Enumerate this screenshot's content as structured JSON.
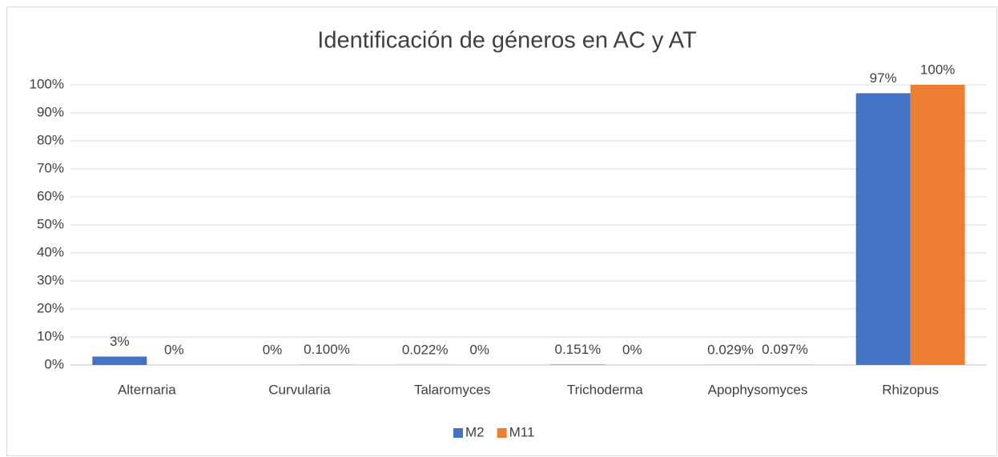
{
  "chart_data": {
    "type": "bar",
    "title": "Identificación de géneros en AC y AT",
    "categories": [
      "Alternaria",
      "Curvularia",
      "Talaromyces",
      "Trichoderma",
      "Apophysomyces",
      "Rhizopus"
    ],
    "series": [
      {
        "name": "M2",
        "color": "#4472c4",
        "values": [
          3,
          0,
          0.022,
          0.151,
          0.029,
          97
        ],
        "value_labels": [
          "3%",
          "0%",
          "0.022%",
          "0.151%",
          "0.029%",
          "97%"
        ]
      },
      {
        "name": "M11",
        "color": "#ed7d31",
        "values": [
          0,
          0.1,
          0,
          0,
          0.097,
          100
        ],
        "value_labels": [
          "0%",
          "0.100%",
          "0%",
          "0%",
          "0.097%",
          "100%"
        ]
      }
    ],
    "ylim": [
      0,
      100
    ],
    "yticks": [
      {
        "value": 0,
        "label": "0%"
      },
      {
        "value": 10,
        "label": "10%"
      },
      {
        "value": 20,
        "label": "20%"
      },
      {
        "value": 30,
        "label": "30%"
      },
      {
        "value": 40,
        "label": "40%"
      },
      {
        "value": 50,
        "label": "50%"
      },
      {
        "value": 60,
        "label": "60%"
      },
      {
        "value": 70,
        "label": "70%"
      },
      {
        "value": 80,
        "label": "80%"
      },
      {
        "value": 90,
        "label": "90%"
      },
      {
        "value": 100,
        "label": "100%"
      }
    ],
    "grid": true,
    "legend": "bottom"
  }
}
